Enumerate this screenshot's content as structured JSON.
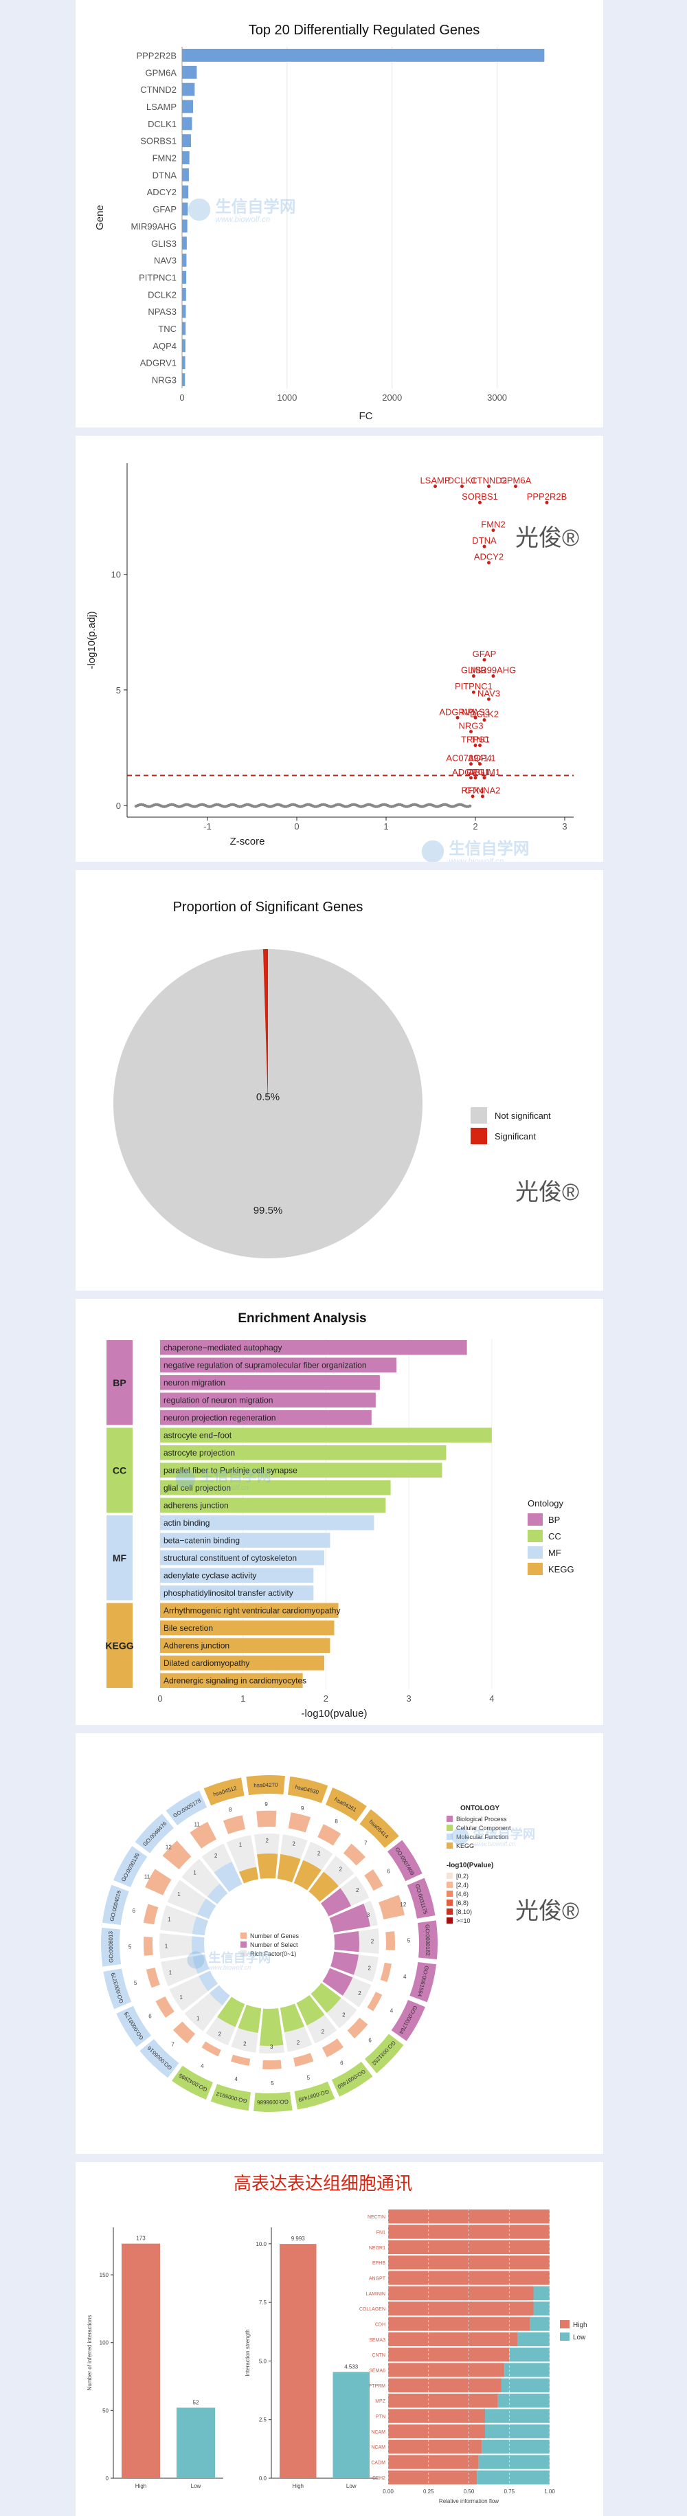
{
  "watermarks": {
    "brand": "光俊®",
    "site_cn": "生信自学网",
    "site_url": "www.biowolf.cn"
  },
  "chart_data": [
    {
      "type": "bar",
      "orientation": "horizontal",
      "title": "Top 20 Differentially Regulated Genes",
      "xlabel": "FC",
      "ylabel": "Gene",
      "xlim": [
        0,
        3500
      ],
      "xticks": [
        "0",
        "1000",
        "2000",
        "3000"
      ],
      "categories": [
        "PPP2R2B",
        "GPM6A",
        "CTNND2",
        "LSAMP",
        "DCLK1",
        "SORBS1",
        "FMN2",
        "DTNA",
        "ADCY2",
        "GFAP",
        "MIR99AHG",
        "GLIS3",
        "NAV3",
        "PITPNC1",
        "DCLK2",
        "NPAS3",
        "TNC",
        "AQP4",
        "ADGRV1",
        "NRG3"
      ],
      "values": [
        3450,
        140,
        120,
        105,
        95,
        85,
        70,
        65,
        60,
        55,
        50,
        45,
        42,
        40,
        38,
        36,
        34,
        32,
        30,
        28
      ],
      "color": "#6f9fd8"
    },
    {
      "type": "scatter",
      "xlabel": "Z-score",
      "ylabel": "-log10(p.adj)",
      "xlim": [
        -1.9,
        3.1
      ],
      "ylim": [
        -0.5,
        14.8
      ],
      "xticks": [
        "-1",
        "0",
        "1",
        "2",
        "3"
      ],
      "yticks": [
        "0",
        "5",
        "10"
      ],
      "threshold_y": 1.3,
      "series": [
        {
          "points": [
            {
              "label": "LSAMP",
              "x": 1.55,
              "y": 13.8
            },
            {
              "label": "DCLK1",
              "x": 1.85,
              "y": 13.8
            },
            {
              "label": "CTNND2",
              "x": 2.15,
              "y": 13.8
            },
            {
              "label": "GPM6A",
              "x": 2.45,
              "y": 13.8
            },
            {
              "label": "SORBS1",
              "x": 2.05,
              "y": 13.1
            },
            {
              "label": "PPP2R2B",
              "x": 2.8,
              "y": 13.1
            },
            {
              "label": "FMN2",
              "x": 2.2,
              "y": 11.9
            },
            {
              "label": "DTNA",
              "x": 2.1,
              "y": 11.2
            },
            {
              "label": "ADCY2",
              "x": 2.15,
              "y": 10.5
            },
            {
              "label": "GFAP",
              "x": 2.1,
              "y": 6.3
            },
            {
              "label": "GLIS3",
              "x": 1.98,
              "y": 5.6
            },
            {
              "label": "MIR99AHG",
              "x": 2.2,
              "y": 5.6
            },
            {
              "label": "PITPNC1",
              "x": 1.98,
              "y": 4.9
            },
            {
              "label": "NAV3",
              "x": 2.15,
              "y": 4.6
            },
            {
              "label": "ADGRV1",
              "x": 1.8,
              "y": 3.8
            },
            {
              "label": "NPAS3",
              "x": 2.0,
              "y": 3.8
            },
            {
              "label": "DCLK2",
              "x": 2.1,
              "y": 3.7
            },
            {
              "label": "NRG3",
              "x": 1.95,
              "y": 3.2
            },
            {
              "label": "TRPS1",
              "x": 2.0,
              "y": 2.6
            },
            {
              "label": "TNC",
              "x": 2.05,
              "y": 2.6
            },
            {
              "label": "AC073941.1",
              "x": 1.95,
              "y": 1.8
            },
            {
              "label": "AQP4",
              "x": 2.05,
              "y": 1.8
            },
            {
              "label": "ADGRG1",
              "x": 1.95,
              "y": 1.2
            },
            {
              "label": "CLU",
              "x": 2.0,
              "y": 1.2
            },
            {
              "label": "ABLIM1",
              "x": 2.1,
              "y": 1.2
            },
            {
              "label": "RFX4",
              "x": 1.97,
              "y": 0.4
            },
            {
              "label": "CTNNA2",
              "x": 2.08,
              "y": 0.4
            }
          ]
        }
      ]
    },
    {
      "type": "pie",
      "title": "Proportion of Significant Genes",
      "slices": [
        {
          "name": "Not significant",
          "value": 99.5,
          "label": "99.5%",
          "color": "#d3d3d3"
        },
        {
          "name": "Significant",
          "value": 0.5,
          "label": "0.5%",
          "color": "#d62410"
        }
      ]
    },
    {
      "type": "bar",
      "orientation": "horizontal",
      "title": "Enrichment Analysis",
      "xlabel": "-log10(pvalue)",
      "xlim": [
        0,
        4.2
      ],
      "xticks": [
        "0",
        "1",
        "2",
        "3",
        "4"
      ],
      "legend_title": "Ontology",
      "groups": [
        {
          "name": "BP",
          "color": "#c97db5",
          "terms": [
            {
              "label": "chaperone−mediated autophagy",
              "value": 3.7
            },
            {
              "label": "negative regulation of supramolecular fiber organization",
              "value": 2.85
            },
            {
              "label": "neuron migration",
              "value": 2.65
            },
            {
              "label": "regulation of neuron migration",
              "value": 2.6
            },
            {
              "label": "neuron projection regeneration",
              "value": 2.55
            }
          ]
        },
        {
          "name": "CC",
          "color": "#b5d96a",
          "terms": [
            {
              "label": "astrocyte end−foot",
              "value": 4.0
            },
            {
              "label": "astrocyte projection",
              "value": 3.45
            },
            {
              "label": "parallel fiber to Purkinje cell synapse",
              "value": 3.4
            },
            {
              "label": "glial cell projection",
              "value": 2.78
            },
            {
              "label": "adherens junction",
              "value": 2.72
            }
          ]
        },
        {
          "name": "MF",
          "color": "#c5dcf3",
          "terms": [
            {
              "label": "actin binding",
              "value": 2.58
            },
            {
              "label": "beta−catenin binding",
              "value": 2.05
            },
            {
              "label": "structural constituent of cytoskeleton",
              "value": 1.98
            },
            {
              "label": "adenylate cyclase activity",
              "value": 1.85
            },
            {
              "label": "phosphatidylinositol transfer activity",
              "value": 1.85
            }
          ]
        },
        {
          "name": "KEGG",
          "color": "#e5b04c",
          "terms": [
            {
              "label": "Arrhythmogenic right ventricular cardiomyopathy",
              "value": 2.15
            },
            {
              "label": "Bile secretion",
              "value": 2.1
            },
            {
              "label": "Adherens junction",
              "value": 2.05
            },
            {
              "label": "Dilated cardiomyopathy",
              "value": 1.98
            },
            {
              "label": "Adrenergic signaling in cardiomyocytes",
              "value": 1.72
            }
          ]
        }
      ]
    },
    {
      "type": "circos",
      "legend": {
        "ontology_title": "ONTOLOGY",
        "ontology": [
          {
            "name": "Biological Process",
            "color": "#c97db5"
          },
          {
            "name": "Cellular Component",
            "color": "#b5d96a"
          },
          {
            "name": "Molecular Function",
            "color": "#c5dcf3"
          },
          {
            "name": "KEGG",
            "color": "#e5b04c"
          }
        ],
        "pvalue_title": "-log10(Pvalue)",
        "pvalue": [
          {
            "name": "[0,2)",
            "color": "#fbe3d4"
          },
          {
            "name": "[2,4)",
            "color": "#f5b896"
          },
          {
            "name": "[4,6)",
            "color": "#ee8a63"
          },
          {
            "name": "[6,8)",
            "color": "#e15d3f"
          },
          {
            "name": "[8,10)",
            "color": "#c8311f"
          },
          {
            "name": ">=10",
            "color": "#a01010"
          }
        ],
        "inner": [
          "Number of Genes",
          "Number of Select",
          "Rich Factor(0~1)"
        ]
      },
      "sectors": [
        {
          "id": "GO:0030136",
          "cat": "MF",
          "genes": "11",
          "select": "1"
        },
        {
          "id": "GO:0048476",
          "cat": "MF",
          "genes": "12",
          "select": "1"
        },
        {
          "id": "GO:0005178",
          "cat": "MF",
          "genes": "11",
          "select": "2"
        },
        {
          "id": "hsa04512",
          "cat": "KEGG",
          "genes": "8",
          "select": "1"
        },
        {
          "id": "hsa04270",
          "cat": "KEGG",
          "genes": "9",
          "select": "2"
        },
        {
          "id": "hsa04530",
          "cat": "KEGG",
          "genes": "9",
          "select": "2"
        },
        {
          "id": "hsa04261",
          "cat": "KEGG",
          "genes": "8",
          "select": "2"
        },
        {
          "id": "hsa05414",
          "cat": "KEGG",
          "genes": "7",
          "select": "2"
        },
        {
          "id": "GO:0007409",
          "cat": "BP",
          "genes": "6",
          "select": "2"
        },
        {
          "id": "GO:0031175",
          "cat": "BP",
          "genes": "12",
          "select": "3"
        },
        {
          "id": "GO:0030182",
          "cat": "BP",
          "genes": "5",
          "select": "2"
        },
        {
          "id": "GO:0061564",
          "cat": "BP",
          "genes": "4",
          "select": "2"
        },
        {
          "id": "GO:0001764",
          "cat": "BP",
          "genes": "4",
          "select": "2"
        },
        {
          "id": "GO:0031252",
          "cat": "CC",
          "genes": "6",
          "select": "2"
        },
        {
          "id": "GO:0097450",
          "cat": "CC",
          "genes": "6",
          "select": "2"
        },
        {
          "id": "GO:0097449",
          "cat": "CC",
          "genes": "5",
          "select": "2"
        },
        {
          "id": "GO:0098686",
          "cat": "CC",
          "genes": "5",
          "select": "3"
        },
        {
          "id": "GO:0005912",
          "cat": "CC",
          "genes": "4",
          "select": "2"
        },
        {
          "id": "GO:0042995",
          "cat": "CC",
          "genes": "4",
          "select": "2"
        },
        {
          "id": "GO:0005516",
          "cat": "MF",
          "genes": "7",
          "select": "1"
        },
        {
          "id": "GO:0008179",
          "cat": "MF",
          "genes": "6",
          "select": "1"
        },
        {
          "id": "GO:0003779",
          "cat": "MF",
          "genes": "5",
          "select": "1"
        },
        {
          "id": "GO:0008013",
          "cat": "MF",
          "genes": "5",
          "select": "1"
        },
        {
          "id": "GO:0004016",
          "cat": "MF",
          "genes": "6",
          "select": "1"
        }
      ]
    },
    {
      "type": "bar",
      "title": "高表达表达组细胞通讯",
      "subplots": [
        {
          "ylabel": "Number of inferred interactions",
          "categories": [
            "High",
            "Low"
          ],
          "values": [
            173,
            52
          ],
          "labels": [
            "173",
            "52"
          ],
          "colors": [
            "#e07b69",
            "#6fbec6"
          ],
          "ylim": [
            0,
            185
          ],
          "yticks": [
            "0",
            "50",
            "100",
            "150"
          ]
        },
        {
          "ylabel": "Interaction strength",
          "categories": [
            "High",
            "Low"
          ],
          "values": [
            9.993,
            4.533
          ],
          "labels": [
            "9.993",
            "4.533"
          ],
          "colors": [
            "#e07b69",
            "#6fbec6"
          ],
          "ylim": [
            0,
            10.7
          ],
          "yticks": [
            "0.0",
            "2.5",
            "5.0",
            "7.5",
            "10.0"
          ]
        },
        {
          "type": "stacked_bar",
          "xlabel": "Relative information flow",
          "xticks": [
            "0.00",
            "0.25",
            "0.50",
            "0.75",
            "1.00"
          ],
          "legend": [
            {
              "name": "High",
              "color": "#e07b69"
            },
            {
              "name": "Low",
              "color": "#6fbec6"
            }
          ],
          "pathways": [
            "NECTIN",
            "FN1",
            "NEGR1",
            "EPHB",
            "ANGPT",
            "LAMININ",
            "COLLAGEN",
            "CDH",
            "SEMA3",
            "CNTN",
            "SEMA6",
            "PTPRM",
            "MPZ",
            "PTN",
            "NCAM",
            "NCAM",
            "CADM",
            "CDH2"
          ],
          "high_fraction": [
            1.0,
            1.0,
            1.0,
            1.0,
            1.0,
            0.9,
            0.9,
            0.88,
            0.8,
            0.75,
            0.72,
            0.7,
            0.68,
            0.6,
            0.6,
            0.58,
            0.56,
            0.55
          ]
        }
      ]
    }
  ]
}
